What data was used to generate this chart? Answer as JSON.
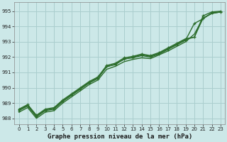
{
  "title": "Graphe pression niveau de la mer (hPa)",
  "bg_color": "#cce8e8",
  "grid_color": "#aacece",
  "line_color": "#2d6e2d",
  "marker_color": "#2d6e2d",
  "xlim": [
    -0.5,
    23.5
  ],
  "ylim": [
    987.6,
    995.6
  ],
  "yticks": [
    988,
    989,
    990,
    991,
    992,
    993,
    994,
    995
  ],
  "xticks": [
    0,
    1,
    2,
    3,
    4,
    5,
    6,
    7,
    8,
    9,
    10,
    11,
    12,
    13,
    14,
    15,
    16,
    17,
    18,
    19,
    20,
    21,
    22,
    23
  ],
  "lines": [
    {
      "x": [
        0,
        1,
        2,
        3,
        4,
        5,
        6,
        7,
        8,
        9,
        10,
        11,
        12,
        13,
        14,
        15,
        16,
        17,
        18,
        19,
        20,
        21,
        22,
        23
      ],
      "y": [
        988.5,
        988.8,
        988.1,
        988.5,
        988.6,
        989.1,
        989.5,
        989.9,
        990.3,
        990.6,
        991.4,
        991.5,
        991.9,
        991.95,
        992.1,
        992.0,
        992.2,
        992.5,
        992.8,
        993.1,
        994.2,
        994.5,
        994.9,
        994.95
      ],
      "marker": true,
      "lw": 1.0
    },
    {
      "x": [
        0,
        1,
        2,
        3,
        4,
        5,
        6,
        7,
        8,
        9,
        10,
        11,
        12,
        13,
        14,
        15,
        16,
        17,
        18,
        19,
        20,
        21,
        22,
        23
      ],
      "y": [
        988.4,
        988.7,
        988.0,
        988.4,
        988.5,
        989.0,
        989.4,
        989.8,
        990.2,
        990.5,
        991.2,
        991.4,
        991.7,
        991.85,
        991.95,
        991.9,
        992.15,
        992.4,
        992.7,
        993.0,
        993.5,
        994.55,
        994.85,
        994.95
      ],
      "marker": false,
      "lw": 1.0
    },
    {
      "x": [
        0,
        1,
        2,
        3,
        4,
        5,
        6,
        7,
        8,
        9,
        10,
        11,
        12,
        13,
        14,
        15,
        16,
        17,
        18,
        19,
        20,
        21,
        22,
        23
      ],
      "y": [
        988.55,
        988.85,
        988.15,
        988.55,
        988.65,
        989.15,
        989.55,
        989.95,
        990.35,
        990.65,
        991.35,
        991.55,
        991.85,
        992.0,
        992.15,
        992.05,
        992.25,
        992.55,
        992.85,
        993.15,
        993.3,
        994.55,
        994.85,
        994.95
      ],
      "marker": false,
      "lw": 1.0
    },
    {
      "x": [
        0,
        1,
        2,
        3,
        4,
        5,
        6,
        7,
        8,
        9,
        10,
        11,
        12,
        13,
        14,
        15,
        16,
        17,
        18,
        19,
        20,
        21,
        22,
        23
      ],
      "y": [
        988.6,
        988.9,
        988.2,
        988.6,
        988.7,
        989.2,
        989.6,
        990.0,
        990.4,
        990.7,
        991.45,
        991.6,
        991.95,
        992.05,
        992.2,
        992.1,
        992.3,
        992.6,
        992.9,
        993.2,
        993.3,
        994.7,
        994.95,
        995.0
      ],
      "marker": true,
      "lw": 1.0
    }
  ]
}
